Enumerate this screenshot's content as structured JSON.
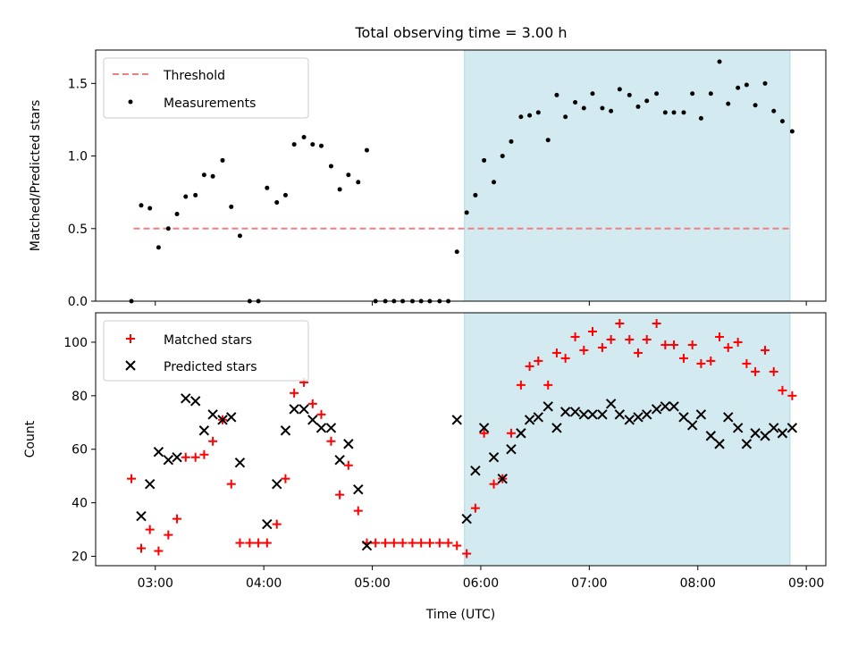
{
  "figure": {
    "title": "Total observing time = 3.00 h"
  },
  "chart_data": [
    {
      "type": "scatter",
      "ylabel": "Matched/Predicted stars",
      "xlabel": "",
      "xlim": [
        2.45,
        9.18
      ],
      "ylim": [
        0.0,
        1.73
      ],
      "yticks": [
        0.0,
        0.5,
        1.0,
        1.5
      ],
      "ytick_labels": [
        "0.0",
        "0.5",
        "1.0",
        "1.5"
      ],
      "xticks": [
        3,
        5,
        7,
        9
      ],
      "shaded_region": [
        5.85,
        8.85
      ],
      "shade_color": "#d3eaf1",
      "legend": {
        "placement": "top-left"
      },
      "threshold": {
        "name": "Threshold",
        "y": 0.5,
        "x": [
          2.8,
          8.85
        ],
        "color": "#f08080"
      },
      "series": [
        {
          "name": "Measurements",
          "marker": "dot",
          "color": "#000000",
          "x": [
            2.78,
            2.87,
            2.95,
            3.03,
            3.12,
            3.2,
            3.28,
            3.37,
            3.45,
            3.53,
            3.62,
            3.7,
            3.78,
            3.87,
            3.95,
            4.03,
            4.12,
            4.2,
            4.28,
            4.37,
            4.45,
            4.53,
            4.62,
            4.7,
            4.78,
            4.87,
            4.95,
            5.03,
            5.12,
            5.2,
            5.28,
            5.37,
            5.45,
            5.53,
            5.62,
            5.7,
            5.78,
            5.87,
            5.95,
            6.03,
            6.12,
            6.2,
            6.28,
            6.37,
            6.45,
            6.53,
            6.62,
            6.7,
            6.78,
            6.87,
            6.95,
            7.03,
            7.12,
            7.2,
            7.28,
            7.37,
            7.45,
            7.53,
            7.62,
            7.7,
            7.78,
            7.87,
            7.95,
            8.03,
            8.12,
            8.2,
            8.28,
            8.37,
            8.45,
            8.53,
            8.62,
            8.7,
            8.78,
            8.87
          ],
          "y": [
            0.0,
            0.66,
            0.64,
            0.37,
            0.5,
            0.6,
            0.72,
            0.73,
            0.87,
            0.86,
            0.97,
            0.65,
            0.45,
            0.0,
            0.0,
            0.78,
            0.68,
            0.73,
            1.08,
            1.13,
            1.08,
            1.07,
            0.93,
            0.77,
            0.87,
            0.82,
            1.04,
            0.0,
            0.0,
            0.0,
            0.0,
            0.0,
            0.0,
            0.0,
            0.0,
            0.0,
            0.34,
            0.61,
            0.73,
            0.97,
            0.82,
            1.0,
            1.1,
            1.27,
            1.28,
            1.3,
            1.11,
            1.42,
            1.27,
            1.37,
            1.33,
            1.43,
            1.33,
            1.31,
            1.46,
            1.42,
            1.34,
            1.38,
            1.43,
            1.3,
            1.3,
            1.3,
            1.43,
            1.26,
            1.43,
            1.65,
            1.36,
            1.47,
            1.49,
            1.35,
            1.5,
            1.31,
            1.24,
            1.17
          ]
        }
      ]
    },
    {
      "type": "scatter",
      "ylabel": "Count",
      "xlabel": "Time (UTC)",
      "xlim": [
        2.45,
        9.18
      ],
      "ylim": [
        16.5,
        111
      ],
      "yticks": [
        20,
        40,
        60,
        80,
        100
      ],
      "ytick_labels": [
        "20",
        "40",
        "60",
        "80",
        "100"
      ],
      "xticks": [
        3,
        4,
        5,
        6,
        7,
        8,
        9
      ],
      "xtick_labels": [
        "03:00",
        "04:00",
        "05:00",
        "06:00",
        "07:00",
        "08:00",
        "09:00"
      ],
      "shaded_region": [
        5.85,
        8.85
      ],
      "shade_color": "#d3eaf1",
      "legend": {
        "placement": "top-left"
      },
      "series": [
        {
          "name": "Matched stars",
          "marker": "plus",
          "color": "#ff0000",
          "x": [
            2.78,
            2.87,
            2.95,
            3.03,
            3.12,
            3.2,
            3.28,
            3.37,
            3.45,
            3.53,
            3.62,
            3.7,
            3.78,
            3.87,
            3.95,
            4.03,
            4.12,
            4.2,
            4.28,
            4.37,
            4.45,
            4.53,
            4.62,
            4.7,
            4.78,
            4.87,
            4.95,
            5.03,
            5.12,
            5.2,
            5.28,
            5.37,
            5.45,
            5.53,
            5.62,
            5.7,
            5.78,
            5.87,
            5.95,
            6.03,
            6.12,
            6.2,
            6.28,
            6.37,
            6.45,
            6.53,
            6.62,
            6.7,
            6.78,
            6.87,
            6.95,
            7.03,
            7.12,
            7.2,
            7.28,
            7.37,
            7.45,
            7.53,
            7.62,
            7.7,
            7.78,
            7.87,
            7.95,
            8.03,
            8.12,
            8.2,
            8.28,
            8.37,
            8.45,
            8.53,
            8.62,
            8.7,
            8.78,
            8.87
          ],
          "y": [
            49,
            23,
            30,
            22,
            28,
            34,
            57,
            57,
            58,
            63,
            71,
            47,
            25,
            25,
            25,
            25,
            32,
            49,
            81,
            85,
            77,
            73,
            63,
            43,
            54,
            37,
            25,
            25,
            25,
            25,
            25,
            25,
            25,
            25,
            25,
            25,
            24,
            21,
            38,
            66,
            47,
            49,
            66,
            84,
            91,
            93,
            84,
            96,
            94,
            102,
            97,
            104,
            98,
            101,
            107,
            101,
            96,
            101,
            107,
            99,
            99,
            94,
            99,
            92,
            93,
            102,
            98,
            100,
            92,
            89,
            97,
            89,
            82,
            80
          ]
        },
        {
          "name": "Predicted stars",
          "marker": "x",
          "color": "#000000",
          "x": [
            2.87,
            2.95,
            3.03,
            3.12,
            3.2,
            3.28,
            3.37,
            3.45,
            3.53,
            3.62,
            3.7,
            3.78,
            4.03,
            4.12,
            4.2,
            4.28,
            4.37,
            4.45,
            4.53,
            4.62,
            4.7,
            4.78,
            4.87,
            4.95,
            5.78,
            5.87,
            5.95,
            6.03,
            6.12,
            6.2,
            6.28,
            6.37,
            6.45,
            6.53,
            6.62,
            6.7,
            6.78,
            6.87,
            6.95,
            7.03,
            7.12,
            7.2,
            7.28,
            7.37,
            7.45,
            7.53,
            7.62,
            7.7,
            7.78,
            7.87,
            7.95,
            8.03,
            8.12,
            8.2,
            8.28,
            8.37,
            8.45,
            8.53,
            8.62,
            8.7,
            8.78,
            8.87
          ],
          "y": [
            35,
            47,
            59,
            56,
            57,
            79,
            78,
            67,
            73,
            71,
            72,
            55,
            32,
            47,
            67,
            75,
            75,
            71,
            68,
            68,
            56,
            62,
            45,
            24,
            71,
            34,
            52,
            68,
            57,
            49,
            60,
            66,
            71,
            72,
            76,
            68,
            74,
            74,
            73,
            73,
            73,
            77,
            73,
            71,
            72,
            73,
            75,
            76,
            76,
            72,
            69,
            73,
            65,
            62,
            72,
            68,
            62,
            66,
            65,
            68,
            66,
            68
          ]
        }
      ]
    }
  ]
}
